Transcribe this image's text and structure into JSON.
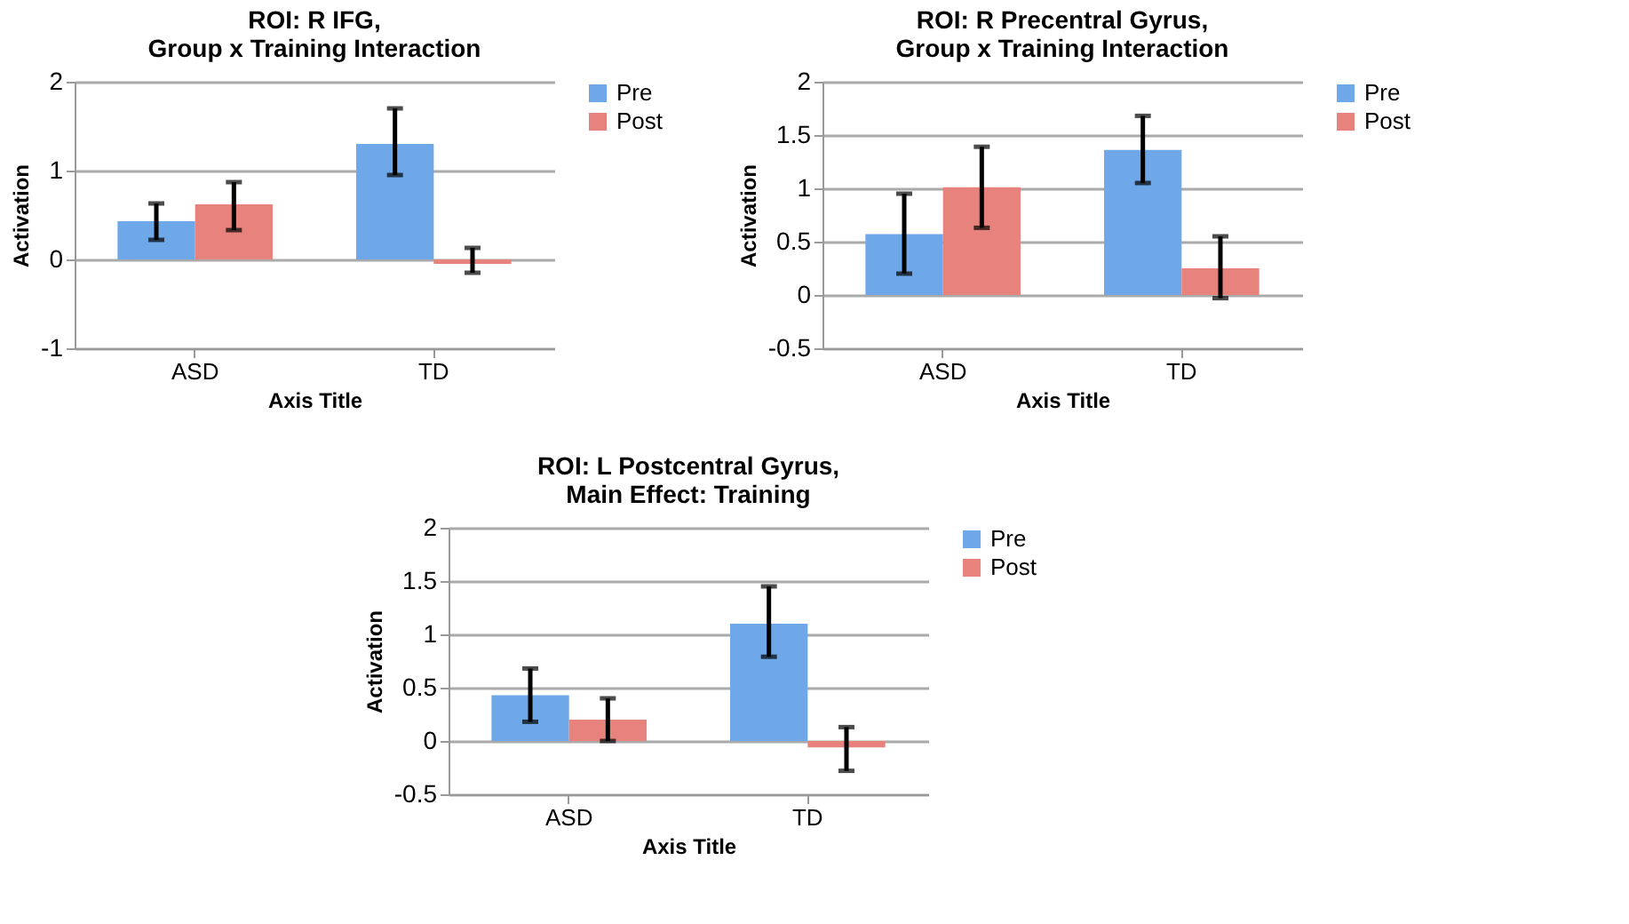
{
  "chart_data": [
    {
      "type": "bar",
      "title": [
        "ROI: R IFG,",
        "Group x Training Interaction"
      ],
      "xlabel": "Axis Title",
      "ylabel": "Activation",
      "categories": [
        "ASD",
        "TD"
      ],
      "series": [
        {
          "name": "Pre",
          "color": "#6fa8e8",
          "values": [
            0.43,
            1.3
          ],
          "errors": [
            [
              0.22,
              0.63
            ],
            [
              0.95,
              1.7
            ]
          ]
        },
        {
          "name": "Post",
          "color": "#e8827c",
          "values": [
            0.62,
            -0.05
          ],
          "errors": [
            [
              0.33,
              0.87
            ],
            [
              -0.15,
              0.13
            ]
          ]
        }
      ],
      "ylim": [
        -1,
        2
      ],
      "yticks": [
        -1,
        0,
        1,
        2
      ],
      "grid": "y",
      "legend": "right"
    },
    {
      "type": "bar",
      "title": [
        "ROI: R Precentral Gyrus,",
        "Group x Training Interaction"
      ],
      "xlabel": "Axis Title",
      "ylabel": "Activation",
      "categories": [
        "ASD",
        "TD"
      ],
      "series": [
        {
          "name": "Pre",
          "color": "#6fa8e8",
          "values": [
            0.57,
            1.36
          ],
          "errors": [
            [
              0.2,
              0.95
            ],
            [
              1.05,
              1.68
            ]
          ]
        },
        {
          "name": "Post",
          "color": "#e8827c",
          "values": [
            1.01,
            0.25
          ],
          "errors": [
            [
              0.63,
              1.39
            ],
            [
              -0.03,
              0.55
            ]
          ]
        }
      ],
      "ylim": [
        -0.5,
        2
      ],
      "yticks": [
        -0.5,
        0,
        0.5,
        1,
        1.5,
        2
      ],
      "grid": "y",
      "legend": "right"
    },
    {
      "type": "bar",
      "title": [
        "ROI: L Postcentral Gyrus,",
        "Main Effect: Training"
      ],
      "xlabel": "Axis Title",
      "ylabel": "Activation",
      "categories": [
        "ASD",
        "TD"
      ],
      "series": [
        {
          "name": "Pre",
          "color": "#6fa8e8",
          "values": [
            0.43,
            1.1
          ],
          "errors": [
            [
              0.18,
              0.68
            ],
            [
              0.79,
              1.45
            ]
          ]
        },
        {
          "name": "Post",
          "color": "#e8827c",
          "values": [
            0.2,
            -0.06
          ],
          "errors": [
            [
              0.0,
              0.4
            ],
            [
              -0.28,
              0.13
            ]
          ]
        }
      ],
      "ylim": [
        -0.5,
        2
      ],
      "yticks": [
        -0.5,
        0,
        0.5,
        1,
        1.5,
        2
      ],
      "grid": "y",
      "legend": "right"
    }
  ]
}
